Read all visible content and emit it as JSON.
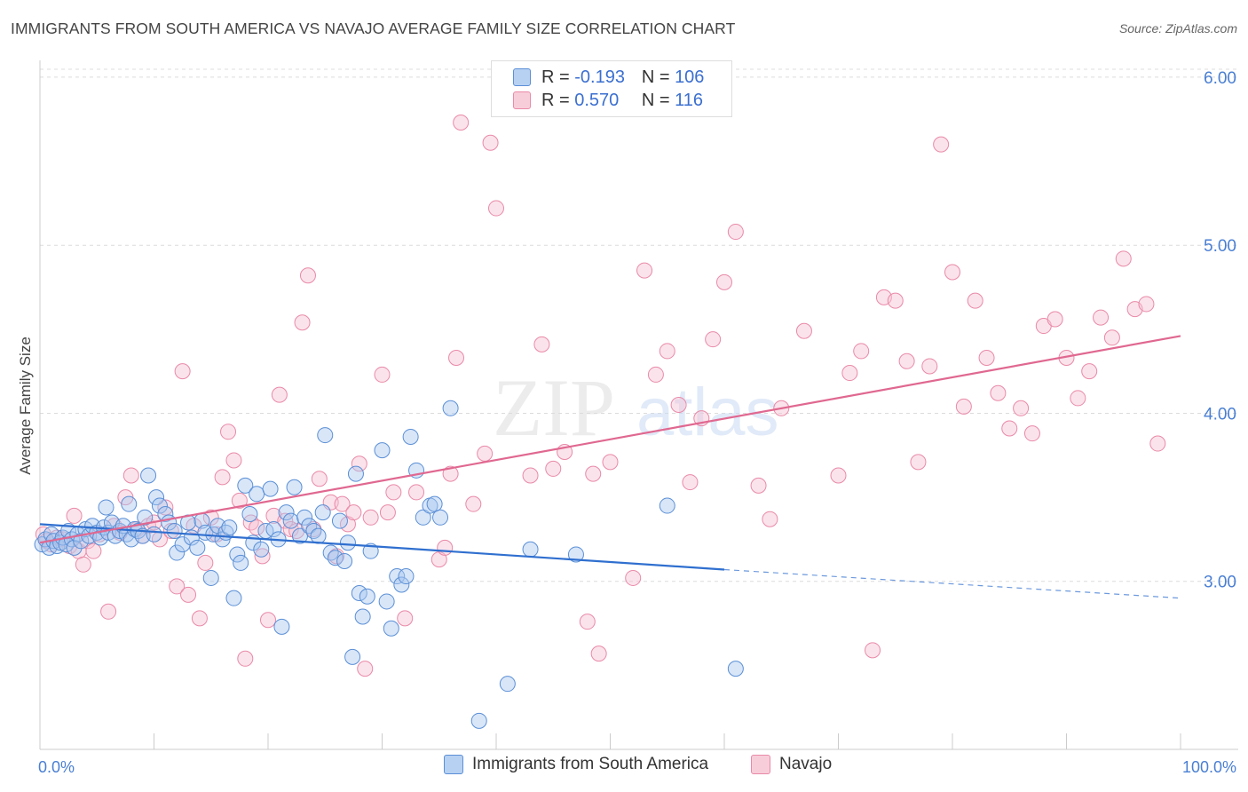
{
  "title": "IMMIGRANTS FROM SOUTH AMERICA VS NAVAJO AVERAGE FAMILY SIZE CORRELATION CHART",
  "source": "Source: ZipAtlas.com",
  "watermark": {
    "zip": "ZIP",
    "atlas": "atlas"
  },
  "legend": {
    "rows": [
      {
        "r_label": "R =",
        "r_value": "-0.193",
        "n_label": "N =",
        "n_value": "106"
      },
      {
        "r_label": "R =",
        "r_value": "0.570",
        "n_label": "N =",
        "n_value": "116"
      }
    ]
  },
  "bottom_legend": [
    "Immigrants from South America",
    "Navajo"
  ],
  "colors": {
    "blue_fill": "#a9c8f0",
    "blue_stroke": "#5b8fd6",
    "blue_line": "#2f6fcf",
    "pink_fill": "#f6c2d2",
    "pink_stroke": "#e98aa8",
    "pink_line": "#e06890",
    "tick_text": "#4a7fd3",
    "grid": "#dcdcdc"
  },
  "chart_data": {
    "type": "scatter",
    "title": "IMMIGRANTS FROM SOUTH AMERICA VS NAVAJO AVERAGE FAMILY SIZE CORRELATION CHART",
    "xlabel": "",
    "ylabel": "Average Family Size",
    "x_tick_labels": [
      "0.0%",
      "100.0%"
    ],
    "y_tick_labels": [
      "3.00",
      "4.00",
      "5.00",
      "6.00"
    ],
    "y_ticks": [
      3,
      4,
      5,
      6
    ],
    "xlim": [
      0,
      100
    ],
    "ylim": [
      2,
      6.1
    ],
    "grid": true,
    "legend_position": "top-center",
    "series": [
      {
        "name": "Immigrants from South America",
        "R": -0.193,
        "N": 106,
        "trend": {
          "x0": 0,
          "y0": 3.34,
          "x1": 60,
          "y1": 3.07,
          "dash_to_x": 100,
          "dash_to_y": 2.9
        },
        "points": [
          [
            0.2,
            3.22
          ],
          [
            0.5,
            3.25
          ],
          [
            0.8,
            3.2
          ],
          [
            1.0,
            3.28
          ],
          [
            1.2,
            3.24
          ],
          [
            1.5,
            3.21
          ],
          [
            1.8,
            3.23
          ],
          [
            2.0,
            3.26
          ],
          [
            2.3,
            3.22
          ],
          [
            2.5,
            3.3
          ],
          [
            2.8,
            3.25
          ],
          [
            3.0,
            3.2
          ],
          [
            3.3,
            3.28
          ],
          [
            3.6,
            3.24
          ],
          [
            4.0,
            3.31
          ],
          [
            4.3,
            3.27
          ],
          [
            4.6,
            3.33
          ],
          [
            5.0,
            3.29
          ],
          [
            5.3,
            3.26
          ],
          [
            5.6,
            3.32
          ],
          [
            6.0,
            3.29
          ],
          [
            6.3,
            3.35
          ],
          [
            6.6,
            3.27
          ],
          [
            7.0,
            3.3
          ],
          [
            7.3,
            3.33
          ],
          [
            7.6,
            3.28
          ],
          [
            8.0,
            3.25
          ],
          [
            8.3,
            3.31
          ],
          [
            8.6,
            3.3
          ],
          [
            9.0,
            3.27
          ],
          [
            5.8,
            3.44
          ],
          [
            7.8,
            3.46
          ],
          [
            9.2,
            3.38
          ],
          [
            9.5,
            3.63
          ],
          [
            10,
            3.28
          ],
          [
            10.2,
            3.5
          ],
          [
            10.5,
            3.45
          ],
          [
            11,
            3.4
          ],
          [
            11.3,
            3.35
          ],
          [
            11.8,
            3.3
          ],
          [
            12,
            3.17
          ],
          [
            12.5,
            3.22
          ],
          [
            13,
            3.35
          ],
          [
            13.3,
            3.26
          ],
          [
            13.8,
            3.2
          ],
          [
            14.2,
            3.36
          ],
          [
            14.5,
            3.29
          ],
          [
            15,
            3.02
          ],
          [
            15.2,
            3.28
          ],
          [
            15.6,
            3.33
          ],
          [
            16,
            3.25
          ],
          [
            16.3,
            3.29
          ],
          [
            16.6,
            3.32
          ],
          [
            17,
            2.9
          ],
          [
            17.3,
            3.16
          ],
          [
            17.6,
            3.11
          ],
          [
            18,
            3.57
          ],
          [
            18.4,
            3.4
          ],
          [
            18.7,
            3.23
          ],
          [
            19,
            3.52
          ],
          [
            19.4,
            3.19
          ],
          [
            19.8,
            3.3
          ],
          [
            20.2,
            3.55
          ],
          [
            20.5,
            3.31
          ],
          [
            20.9,
            3.25
          ],
          [
            21.2,
            2.73
          ],
          [
            21.6,
            3.41
          ],
          [
            22,
            3.36
          ],
          [
            22.3,
            3.56
          ],
          [
            22.8,
            3.27
          ],
          [
            23.2,
            3.38
          ],
          [
            23.6,
            3.33
          ],
          [
            24,
            3.3
          ],
          [
            24.4,
            3.27
          ],
          [
            24.8,
            3.41
          ],
          [
            25,
            3.87
          ],
          [
            25.5,
            3.17
          ],
          [
            25.9,
            3.14
          ],
          [
            26.3,
            3.36
          ],
          [
            26.7,
            3.12
          ],
          [
            27,
            3.23
          ],
          [
            27.4,
            2.55
          ],
          [
            27.7,
            3.64
          ],
          [
            28,
            2.93
          ],
          [
            28.3,
            2.79
          ],
          [
            28.7,
            2.91
          ],
          [
            29,
            3.18
          ],
          [
            30,
            3.78
          ],
          [
            30.4,
            2.88
          ],
          [
            30.8,
            2.72
          ],
          [
            31.3,
            3.03
          ],
          [
            31.7,
            2.98
          ],
          [
            32.1,
            3.03
          ],
          [
            32.5,
            3.86
          ],
          [
            33,
            3.66
          ],
          [
            33.6,
            3.38
          ],
          [
            34.2,
            3.45
          ],
          [
            34.6,
            3.46
          ],
          [
            35.1,
            3.38
          ],
          [
            36,
            4.03
          ],
          [
            38.5,
            2.17
          ],
          [
            41,
            2.39
          ],
          [
            43,
            3.19
          ],
          [
            47,
            3.16
          ],
          [
            55,
            3.45
          ],
          [
            61,
            2.48
          ]
        ]
      },
      {
        "name": "Navajo",
        "R": 0.57,
        "N": 116,
        "trend": {
          "x0": 0,
          "y0": 3.23,
          "x1": 100,
          "y1": 4.46
        },
        "points": [
          [
            0.3,
            3.28
          ],
          [
            0.6,
            3.24
          ],
          [
            1.0,
            3.22
          ],
          [
            1.5,
            3.26
          ],
          [
            2.0,
            3.25
          ],
          [
            2.6,
            3.21
          ],
          [
            3.0,
            3.39
          ],
          [
            3.4,
            3.18
          ],
          [
            3.8,
            3.1
          ],
          [
            4.2,
            3.24
          ],
          [
            4.7,
            3.18
          ],
          [
            5.2,
            3.28
          ],
          [
            6.0,
            2.82
          ],
          [
            6.5,
            3.33
          ],
          [
            7.0,
            3.29
          ],
          [
            7.5,
            3.5
          ],
          [
            8.0,
            3.63
          ],
          [
            8.5,
            3.31
          ],
          [
            9.0,
            3.27
          ],
          [
            9.5,
            3.33
          ],
          [
            10,
            3.35
          ],
          [
            10.5,
            3.25
          ],
          [
            11,
            3.44
          ],
          [
            11.5,
            3.3
          ],
          [
            12,
            2.97
          ],
          [
            12.5,
            4.25
          ],
          [
            13,
            2.92
          ],
          [
            13.5,
            3.33
          ],
          [
            14,
            2.78
          ],
          [
            14.5,
            3.11
          ],
          [
            15,
            3.38
          ],
          [
            15.5,
            3.28
          ],
          [
            16,
            3.62
          ],
          [
            16.5,
            3.89
          ],
          [
            17,
            3.72
          ],
          [
            17.5,
            3.48
          ],
          [
            18,
            2.54
          ],
          [
            18.5,
            3.35
          ],
          [
            19,
            3.32
          ],
          [
            19.5,
            3.15
          ],
          [
            20,
            2.77
          ],
          [
            20.5,
            3.39
          ],
          [
            21,
            4.11
          ],
          [
            21.5,
            3.36
          ],
          [
            22,
            3.31
          ],
          [
            22.5,
            3.3
          ],
          [
            23,
            4.54
          ],
          [
            23.5,
            4.82
          ],
          [
            24,
            3.31
          ],
          [
            24.5,
            3.61
          ],
          [
            25.5,
            3.47
          ],
          [
            26,
            3.15
          ],
          [
            26.5,
            3.46
          ],
          [
            27,
            3.34
          ],
          [
            27.5,
            3.41
          ],
          [
            28,
            3.7
          ],
          [
            28.5,
            2.48
          ],
          [
            29,
            3.38
          ],
          [
            30,
            4.23
          ],
          [
            30.5,
            3.41
          ],
          [
            31,
            3.53
          ],
          [
            32,
            2.78
          ],
          [
            33,
            3.53
          ],
          [
            35,
            3.13
          ],
          [
            35.5,
            3.2
          ],
          [
            36,
            3.64
          ],
          [
            36.5,
            4.33
          ],
          [
            36.9,
            5.73
          ],
          [
            38,
            3.46
          ],
          [
            39,
            3.76
          ],
          [
            39.5,
            5.61
          ],
          [
            40,
            5.22
          ],
          [
            43,
            3.63
          ],
          [
            44,
            4.41
          ],
          [
            45,
            3.67
          ],
          [
            46,
            3.77
          ],
          [
            48,
            2.76
          ],
          [
            48.5,
            3.64
          ],
          [
            49,
            2.57
          ],
          [
            50,
            3.71
          ],
          [
            52,
            3.02
          ],
          [
            53,
            4.85
          ],
          [
            54,
            4.23
          ],
          [
            55,
            4.37
          ],
          [
            56,
            4.05
          ],
          [
            57,
            3.59
          ],
          [
            58,
            3.97
          ],
          [
            59,
            4.44
          ],
          [
            60,
            4.78
          ],
          [
            61,
            5.08
          ],
          [
            63,
            3.57
          ],
          [
            64,
            3.37
          ],
          [
            65,
            4.03
          ],
          [
            67,
            4.49
          ],
          [
            70,
            3.63
          ],
          [
            71,
            4.24
          ],
          [
            72,
            4.37
          ],
          [
            73,
            2.59
          ],
          [
            74,
            4.69
          ],
          [
            75,
            4.67
          ],
          [
            76,
            4.31
          ],
          [
            77,
            3.71
          ],
          [
            78,
            4.28
          ],
          [
            79,
            5.6
          ],
          [
            80,
            4.84
          ],
          [
            81,
            4.04
          ],
          [
            82,
            4.67
          ],
          [
            83,
            4.33
          ],
          [
            84,
            4.12
          ],
          [
            85,
            3.91
          ],
          [
            86,
            4.03
          ],
          [
            87,
            3.88
          ],
          [
            88,
            4.52
          ],
          [
            89,
            4.56
          ],
          [
            90,
            4.33
          ],
          [
            91,
            4.09
          ],
          [
            92,
            4.25
          ],
          [
            93,
            4.57
          ],
          [
            94,
            4.45
          ],
          [
            95,
            4.92
          ],
          [
            96,
            4.62
          ],
          [
            97,
            4.65
          ],
          [
            98,
            3.82
          ]
        ]
      }
    ]
  }
}
